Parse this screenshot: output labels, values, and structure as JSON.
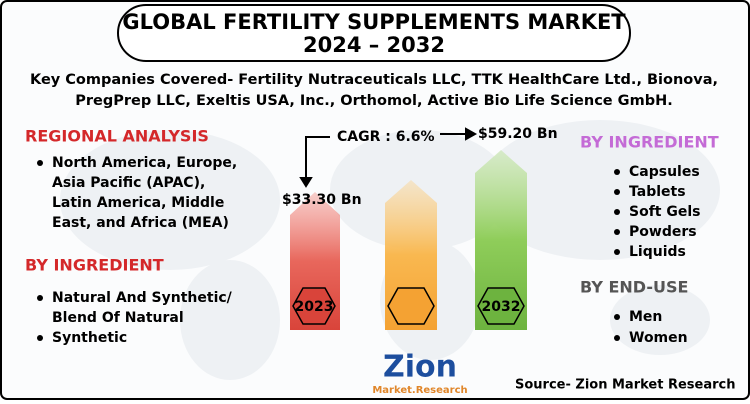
{
  "header": {
    "title_lines": [
      "GLOBAL FERTILITY SUPPLEMENTS MARKET",
      "2024 – 2032"
    ],
    "key_companies": [
      "Key Companies Covered- Fertility Nutraceuticals LLC, TTK HealthCare Ltd., Bionova,",
      "PregPrep LLC, Exeltis USA, Inc., Orthomol, Active Bio Life Science GmbH."
    ]
  },
  "regional_analysis": {
    "title": "REGIONAL ANALYSIS",
    "items": [
      [
        "North America, Europe,",
        "Asia Pacific (APAC),",
        "Latin America, Middle",
        "East, and Africa (MEA)"
      ]
    ]
  },
  "left_ingredient": {
    "title": "BY INGREDIENT",
    "items": [
      [
        "Natural And Synthetic/",
        "Blend Of Natural"
      ],
      [
        "Synthetic"
      ]
    ]
  },
  "center": {
    "cagr": "CAGR : 6.6%",
    "start_value": "$33.30 Bn",
    "end_value": "$59.20 Bn",
    "start_year": "2023",
    "end_year": "2032"
  },
  "right_ingredient": {
    "title": "BY INGREDIENT",
    "items": [
      "Capsules",
      "Tablets",
      "Soft Gels",
      "Powders",
      "Liquids"
    ]
  },
  "end_use": {
    "title": "BY END-USE",
    "items": [
      "Men",
      "Women"
    ]
  },
  "logo": {
    "name": "Zion",
    "tagline": "Market.Research"
  },
  "source": "Source- Zion Market Research"
}
